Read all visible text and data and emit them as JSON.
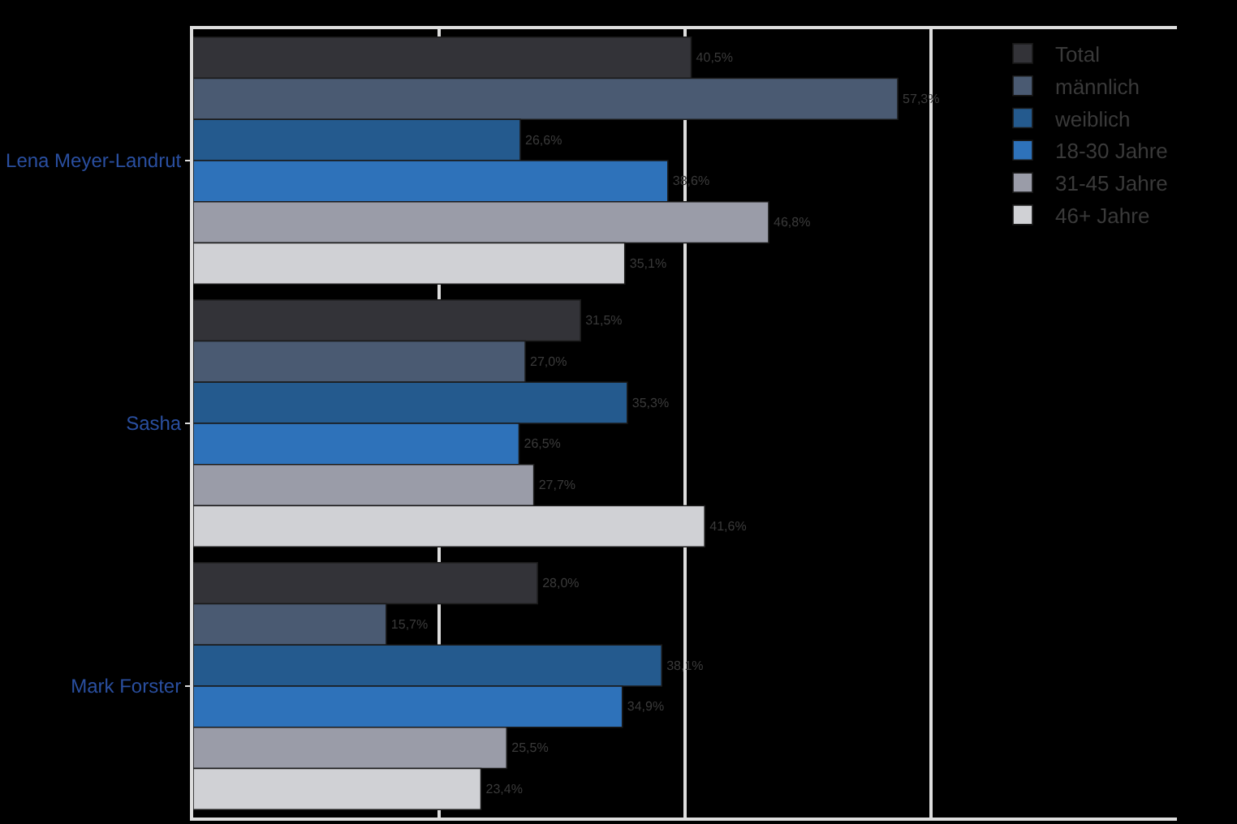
{
  "chart_data": {
    "type": "bar",
    "orientation": "horizontal",
    "categories": [
      "Lena Meyer-Landrut",
      "Sasha",
      "Mark Forster"
    ],
    "series": [
      {
        "name": "Total",
        "color": "#333338",
        "values": [
          40.5,
          31.5,
          28.0
        ],
        "value_labels": [
          "40,5%",
          "31,5%",
          "28,0%"
        ]
      },
      {
        "name": "männlich",
        "color": "#4a5a72",
        "values": [
          57.3,
          27.0,
          15.7
        ],
        "value_labels": [
          "57,3%",
          "27,0%",
          "15,7%"
        ]
      },
      {
        "name": "weiblich",
        "color": "#245a8e",
        "values": [
          26.6,
          35.3,
          38.1
        ],
        "value_labels": [
          "26,6%",
          "35,3%",
          "38,1%"
        ]
      },
      {
        "name": "18-30 Jahre",
        "color": "#2e72ba",
        "values": [
          38.6,
          26.5,
          34.9
        ],
        "value_labels": [
          "38,6%",
          "26,5%",
          "34,9%"
        ]
      },
      {
        "name": "31-45 Jahre",
        "color": "#9a9ca8",
        "values": [
          46.8,
          27.7,
          25.5
        ],
        "value_labels": [
          "46,8%",
          "27,7%",
          "25,5%"
        ]
      },
      {
        "name": "46+ Jahre",
        "color": "#d0d1d5",
        "values": [
          35.1,
          41.6,
          23.4
        ],
        "value_labels": [
          "35,1%",
          "41,6%",
          "23,4%"
        ]
      }
    ],
    "xlim": [
      0,
      80
    ],
    "xticks": [
      {
        "value": 0,
        "label": null
      },
      {
        "value": 20,
        "label": null
      },
      {
        "value": 40,
        "label": null
      },
      {
        "value": 60,
        "label": null
      }
    ],
    "tick_labels": "y",
    "grid": "x",
    "legend": "top right"
  }
}
